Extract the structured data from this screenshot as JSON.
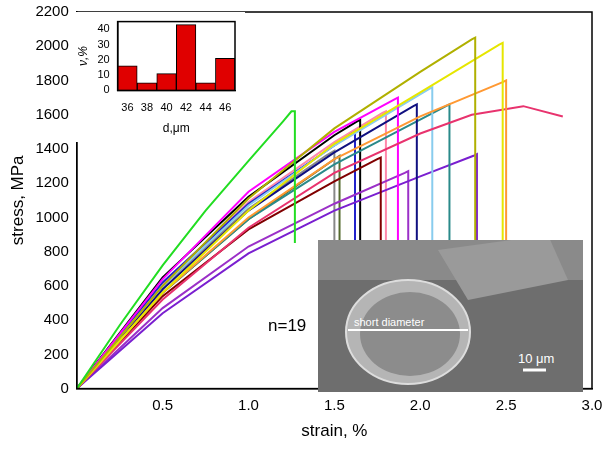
{
  "chart_data": [
    {
      "type": "line",
      "x_label": "strain, %",
      "y_label": "stress, MPa",
      "annotation": "n=19",
      "xlim": [
        0,
        3.0
      ],
      "xticks": [
        0.5,
        {
          "value": 1.0,
          "label": "1.0"
        },
        1.5,
        {
          "value": 2.0,
          "label": "2.0"
        },
        2.5,
        {
          "value": 3.0,
          "label": "3.0"
        }
      ],
      "ylim": [
        0,
        2200
      ],
      "yticks": [
        0,
        200,
        400,
        600,
        800,
        1000,
        1200,
        1400,
        1600,
        1800,
        2000,
        2200
      ],
      "grid": false,
      "series": [
        {
          "color": "#22dd22",
          "x": [
            0,
            0.25,
            0.5,
            0.75,
            1.0,
            1.2,
            1.25,
            1.27,
            1.27
          ],
          "values": [
            0,
            370,
            720,
            1040,
            1330,
            1560,
            1620,
            1620,
            850
          ]
        },
        {
          "color": "#b0b000",
          "x": [
            0,
            0.5,
            1.0,
            1.5,
            2.0,
            2.3,
            2.32,
            2.32
          ],
          "values": [
            0,
            600,
            1110,
            1520,
            1850,
            2040,
            2050,
            0
          ]
        },
        {
          "color": "#e6e600",
          "x": [
            0,
            0.5,
            1.0,
            1.5,
            2.0,
            2.46,
            2.48,
            2.48
          ],
          "values": [
            0,
            560,
            1040,
            1430,
            1730,
            2010,
            2020,
            0
          ]
        },
        {
          "color": "#ff9933",
          "x": [
            0,
            0.5,
            1.0,
            1.5,
            2.0,
            2.48,
            2.5,
            2.5
          ],
          "values": [
            0,
            560,
            1000,
            1340,
            1590,
            1790,
            1800,
            0
          ]
        },
        {
          "color": "#e8336e",
          "x": [
            0,
            0.5,
            1.0,
            1.5,
            2.0,
            2.3,
            2.6,
            2.83
          ],
          "values": [
            0,
            520,
            940,
            1260,
            1490,
            1600,
            1650,
            1590
          ]
        },
        {
          "color": "#ff00ff",
          "x": [
            0,
            0.5,
            1.0,
            1.5,
            1.85,
            1.87,
            1.87
          ],
          "values": [
            0,
            640,
            1150,
            1500,
            1690,
            1700,
            0
          ]
        },
        {
          "color": "#88ccee",
          "x": [
            0,
            0.5,
            1.0,
            1.5,
            2.05,
            2.07,
            2.07
          ],
          "values": [
            0,
            600,
            1070,
            1420,
            1750,
            1760,
            0
          ]
        },
        {
          "color": "#101080",
          "x": [
            0,
            0.5,
            1.0,
            1.5,
            1.96,
            1.98,
            1.98
          ],
          "values": [
            0,
            580,
            1040,
            1380,
            1650,
            1660,
            0
          ]
        },
        {
          "color": "#2a8a8a",
          "x": [
            0,
            0.5,
            1.0,
            1.5,
            2.15,
            2.17,
            2.17
          ],
          "values": [
            0,
            560,
            990,
            1310,
            1650,
            1660,
            0
          ]
        },
        {
          "color": "#800000",
          "x": [
            0,
            0.5,
            1.0,
            1.5,
            1.75,
            1.77,
            1.77
          ],
          "values": [
            0,
            540,
            930,
            1210,
            1340,
            1350,
            0
          ]
        },
        {
          "color": "#7a1fd0",
          "x": [
            0,
            0.5,
            1.0,
            1.5,
            2.0,
            2.31,
            2.33,
            2.33
          ],
          "values": [
            0,
            440,
            790,
            1040,
            1240,
            1360,
            1370,
            0
          ]
        },
        {
          "color": "#9b30c8",
          "x": [
            0,
            0.5,
            1.0,
            1.5,
            1.91,
            1.93,
            1.93
          ],
          "values": [
            0,
            470,
            830,
            1080,
            1260,
            1270,
            0
          ]
        },
        {
          "color": "#000000",
          "x": [
            0,
            0.5,
            1.0,
            1.5,
            1.63,
            1.65,
            1.65
          ],
          "values": [
            0,
            650,
            1120,
            1480,
            1560,
            1570,
            0
          ]
        },
        {
          "color": "#2222cc",
          "x": [
            0,
            0.5,
            1.0,
            1.5,
            1.6,
            1.62,
            1.62
          ],
          "values": [
            0,
            620,
            1080,
            1420,
            1490,
            1500,
            0
          ]
        },
        {
          "color": "#888888",
          "x": [
            0,
            0.5,
            1.0,
            1.45,
            1.5,
            1.5
          ],
          "values": [
            0,
            600,
            1050,
            1360,
            1390,
            0
          ]
        },
        {
          "color": "#556b2f",
          "x": [
            0,
            0.5,
            1.0,
            1.5,
            1.53,
            1.53
          ],
          "values": [
            0,
            560,
            990,
            1340,
            1360,
            0
          ]
        },
        {
          "color": "#ff88aa",
          "x": [
            0,
            0.5,
            1.0,
            1.5,
            1.78,
            1.8,
            1.8
          ],
          "values": [
            0,
            610,
            1090,
            1440,
            1610,
            1620,
            0
          ]
        }
      ]
    },
    {
      "type": "bar",
      "x_label": "d,μm",
      "y_label": "ν,%",
      "categories": [
        "36",
        "38",
        "40",
        "42",
        "44",
        "46"
      ],
      "values": [
        16,
        5,
        11,
        43,
        5,
        21
      ],
      "color": "#e00000",
      "ylim": [
        0,
        45
      ],
      "yticks": [
        0,
        10,
        20,
        30,
        40
      ],
      "grid": false
    }
  ],
  "image_inset": {
    "labels": [
      "short diameter",
      "10 μm"
    ]
  }
}
